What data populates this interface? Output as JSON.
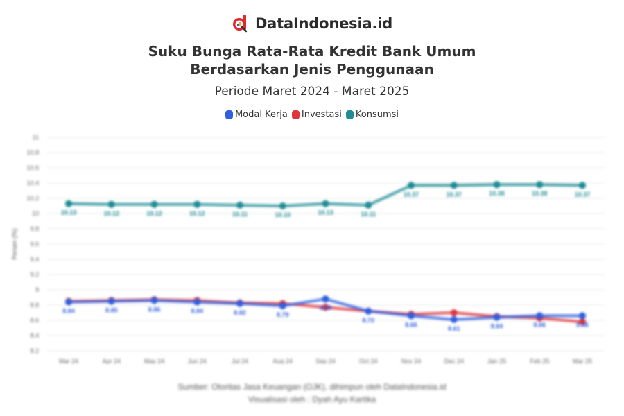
{
  "brand": {
    "name": "DataIndonesia.id",
    "logo_color": "#e0282e"
  },
  "header": {
    "title_line1": "Suku Bunga Rata-Rata Kredit Bank Umum",
    "title_line2": "Berdasarkan Jenis Penggunaan",
    "subtitle": "Periode Maret 2024 - Maret 2025"
  },
  "legend": [
    {
      "label": "Modal Kerja",
      "color": "#2f5fe0"
    },
    {
      "label": "Investasi",
      "color": "#e0333c"
    },
    {
      "label": "Konsumsi",
      "color": "#1f8c95"
    }
  ],
  "footer": {
    "source": "Sumber: Otoritas Jasa Keuangan (OJK), dihimpun oleh DataIndonesia.id",
    "credit": "Visualisasi oleh : Dyah Ayu Kartika"
  },
  "chart_data": {
    "type": "line",
    "title": "Suku Bunga Rata-Rata Kredit Bank Umum Berdasarkan Jenis Penggunaan",
    "subtitle": "Periode Maret 2024 - Maret 2025",
    "xlabel": "",
    "ylabel": "Persen (%)",
    "categories": [
      "Mar 24",
      "Apr 24",
      "May 24",
      "Jun 24",
      "Jul 24",
      "Aug 24",
      "Sep 24",
      "Oct 24",
      "Nov 24",
      "Dec 24",
      "Jan 25",
      "Feb 25",
      "Mar 25"
    ],
    "yticks": [
      "11",
      "10.8",
      "10.6",
      "10.4",
      "10.2",
      "10",
      "9.8",
      "9.6",
      "9.4",
      "9.2",
      "9",
      "8.8",
      "8.6",
      "8.4",
      "8.2"
    ],
    "ylim": [
      8.2,
      11
    ],
    "grid": true,
    "legend_position": "top",
    "data_labels": true,
    "series": [
      {
        "name": "Modal Kerja",
        "color": "#2f5fe0",
        "values": [
          8.84,
          8.85,
          8.86,
          8.84,
          8.82,
          8.79,
          8.88,
          8.72,
          8.66,
          8.61,
          8.64,
          8.66,
          8.66
        ]
      },
      {
        "name": "Investasi",
        "color": "#e0333c",
        "values": [
          8.85,
          8.86,
          8.87,
          8.86,
          8.83,
          8.82,
          8.77,
          8.72,
          8.68,
          8.7,
          8.65,
          8.63,
          8.58
        ]
      },
      {
        "name": "Konsumsi",
        "color": "#1f8c95",
        "values": [
          10.13,
          10.12,
          10.12,
          10.12,
          10.11,
          10.1,
          10.13,
          10.11,
          10.37,
          10.37,
          10.38,
          10.38,
          10.37
        ]
      }
    ]
  }
}
